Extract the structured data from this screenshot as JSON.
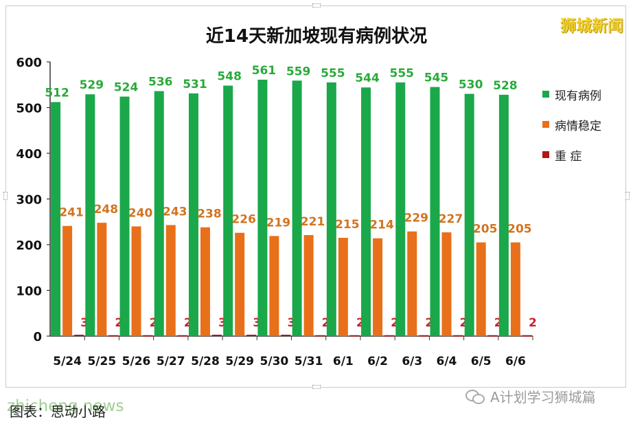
{
  "brand": "狮城新闻",
  "watermark": "A计划学习狮城篇",
  "source_text": "图表：思动小路",
  "site_text": "zhicheng.news",
  "chart_data": {
    "type": "bar",
    "title": "近14天新加坡现有病例状况",
    "categories": [
      "5/24",
      "5/25",
      "5/26",
      "5/27",
      "5/28",
      "5/29",
      "5/30",
      "5/31",
      "6/1",
      "6/2",
      "6/3",
      "6/4",
      "6/5",
      "6/6"
    ],
    "series": [
      {
        "name": "现有病例",
        "color": "#1aa84a",
        "label_color": "#2aaa3a",
        "values": [
          512,
          529,
          524,
          536,
          531,
          548,
          561,
          559,
          555,
          544,
          555,
          545,
          530,
          528
        ]
      },
      {
        "name": "病情稳定",
        "color": "#e8701a",
        "label_color": "#d2741f",
        "values": [
          241,
          248,
          240,
          243,
          238,
          226,
          219,
          221,
          215,
          214,
          229,
          227,
          205,
          205
        ]
      },
      {
        "name": "重 症",
        "color": "#b01717",
        "label_color": "#cc1f2a",
        "values": [
          3,
          2,
          2,
          2,
          3,
          3,
          3,
          2,
          2,
          2,
          2,
          2,
          2,
          2
        ]
      }
    ],
    "yticks": [
      0,
      100,
      200,
      300,
      400,
      500,
      600
    ],
    "ylim": [
      0,
      600
    ],
    "legend": "right",
    "grid": false
  }
}
